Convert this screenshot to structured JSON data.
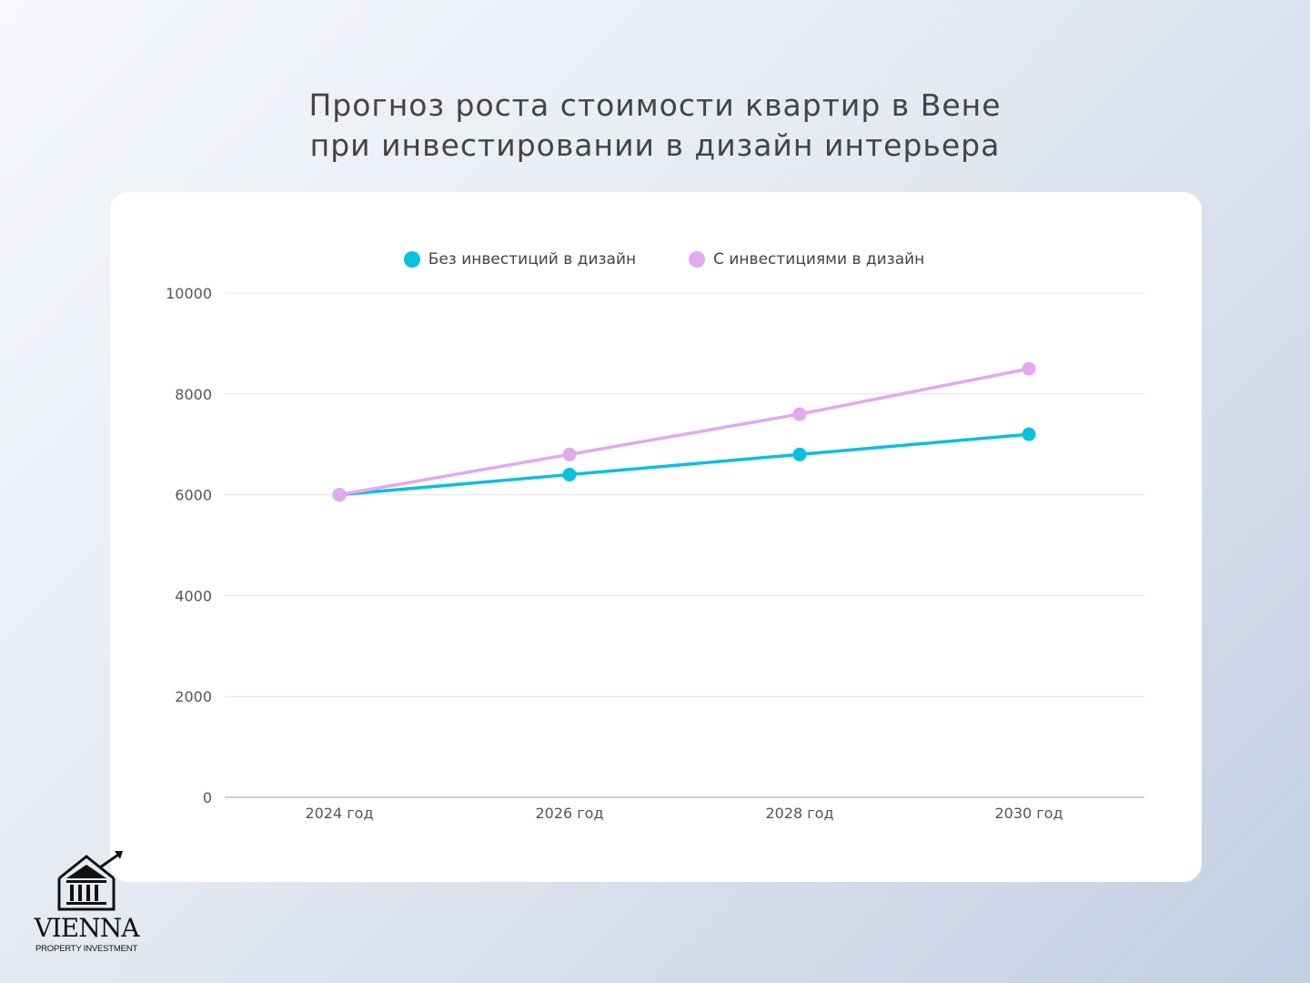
{
  "header": {
    "title_line1": "Прогноз роста стоимости квартир в Вене",
    "title_line2": "при инвестировании в дизайн интерьера"
  },
  "legend": [
    {
      "label": "Без инвестиций в дизайн",
      "color": "#0bbfdf"
    },
    {
      "label": "С инвестициями в дизайн",
      "color": "#e3a8f0"
    }
  ],
  "axes": {
    "y_ticks": [
      "0",
      "2000",
      "4000",
      "6000",
      "8000",
      "10000"
    ],
    "x_ticks": [
      "2024 год",
      "2026 год",
      "2028 год",
      "2030 год"
    ]
  },
  "logo": {
    "name": "VIENNA",
    "subtitle": "PROPERTY INVESTMENT",
    "icon": "building-arrow-icon"
  },
  "chart_data": {
    "type": "line",
    "title": "Прогноз роста стоимости квартир в Вене при инвестировании в дизайн интерьера",
    "xlabel": "",
    "ylabel": "",
    "categories": [
      "2024 год",
      "2026 год",
      "2028 год",
      "2030 год"
    ],
    "series": [
      {
        "name": "Без инвестиций в дизайн",
        "color": "#0bbfdf",
        "values": [
          6000,
          6400,
          6800,
          7200
        ]
      },
      {
        "name": "С инвестициями в дизайн",
        "color": "#e3a8f0",
        "values": [
          6000,
          6800,
          7600,
          8500
        ]
      }
    ],
    "ylim": [
      0,
      10000
    ],
    "y_tick_step": 2000,
    "grid": true,
    "legend_position": "top"
  }
}
